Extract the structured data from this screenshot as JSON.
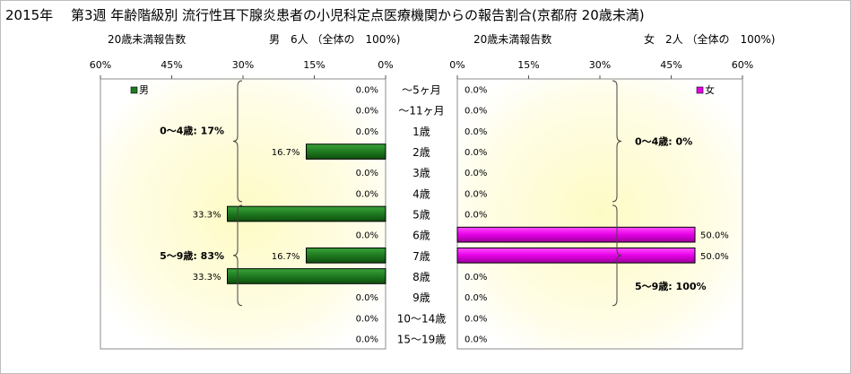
{
  "title": "2015年　 第3週 年齢階級別 流行性耳下腺炎患者の小児科定点医療機関からの報告割合(京都府 20歳未満)",
  "left_header": {
    "caption": "20歳未満報告数",
    "summary": "男　6人 （全体の　100%)"
  },
  "right_header": {
    "caption": "20歳未満報告数",
    "summary": "女　2人 （全体の　100%)"
  },
  "chart_data": {
    "type": "bar",
    "orientation": "horizontal-butterfly",
    "categories": [
      "～5ヶ月",
      "～11ヶ月",
      "1歳",
      "2歳",
      "3歳",
      "4歳",
      "5歳",
      "6歳",
      "7歳",
      "8歳",
      "9歳",
      "10～14歳",
      "15～19歳"
    ],
    "xlim": [
      0,
      60
    ],
    "ticks": [
      60,
      45,
      30,
      15,
      0
    ],
    "tick_labels_left": [
      "60%",
      "45%",
      "30%",
      "15%",
      "0%"
    ],
    "tick_labels_right": [
      "0%",
      "15%",
      "30%",
      "45%",
      "60%"
    ],
    "series": [
      {
        "name": "男",
        "color": "#1f7a1f",
        "values": [
          0,
          0,
          0,
          16.7,
          0,
          0,
          33.3,
          0,
          16.7,
          33.3,
          0,
          0,
          0
        ],
        "labels": [
          "0.0%",
          "0.0%",
          "0.0%",
          "16.7%",
          "0.0%",
          "0.0%",
          "33.3%",
          "0.0%",
          "16.7%",
          "33.3%",
          "0.0%",
          "0.0%",
          "0.0%"
        ],
        "legend_label": "男",
        "brackets": [
          {
            "label": "0～4歳: 17%",
            "from": 0,
            "to": 5
          },
          {
            "label": "5～9歳: 83%",
            "from": 6,
            "to": 10
          }
        ]
      },
      {
        "name": "女",
        "color": "#e600e6",
        "values": [
          0,
          0,
          0,
          0,
          0,
          0,
          0,
          50,
          50,
          0,
          0,
          0,
          0
        ],
        "labels": [
          "0.0%",
          "0.0%",
          "0.0%",
          "0.0%",
          "0.0%",
          "0.0%",
          "0.0%",
          "50.0%",
          "50.0%",
          "0.0%",
          "0.0%",
          "0.0%",
          "0.0%"
        ],
        "legend_label": "女",
        "brackets": [
          {
            "label": "0～4歳: 0%",
            "from": 0,
            "to": 5
          },
          {
            "label": "5～9歳: 100%",
            "from": 6,
            "to": 10
          }
        ]
      }
    ]
  }
}
